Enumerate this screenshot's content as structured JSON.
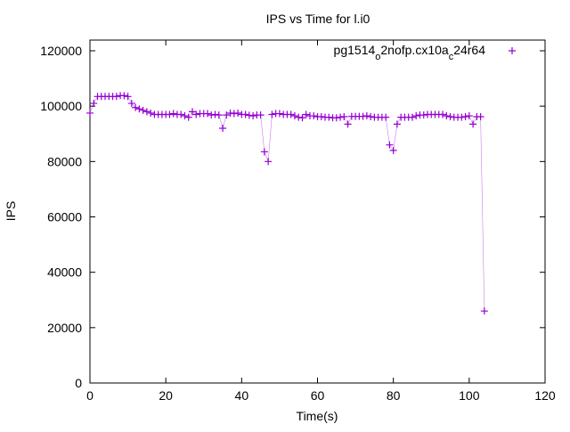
{
  "chart_data": {
    "type": "scatter",
    "title": "IPS vs Time for l.i0",
    "xlabel": "Time(s)",
    "ylabel": "IPS",
    "xlim": [
      0,
      120
    ],
    "ylim": [
      0,
      124000
    ],
    "xticks": [
      0,
      20,
      40,
      60,
      80,
      100,
      120
    ],
    "yticks": [
      0,
      20000,
      40000,
      60000,
      80000,
      100000,
      120000
    ],
    "legend_placement": "top-right",
    "series": [
      {
        "name": "pg1514_o2nofp.cx10a_c24r64",
        "name_parts": [
          "pg1514",
          "o",
          "2nofp.cx10a",
          "c",
          "24r64"
        ],
        "color": "#9400d3",
        "marker": "plus",
        "x": [
          0,
          1,
          2,
          3,
          4,
          5,
          6,
          7,
          8,
          9,
          10,
          11,
          12,
          13,
          14,
          15,
          16,
          17,
          18,
          19,
          20,
          21,
          22,
          23,
          24,
          25,
          26,
          27,
          28,
          29,
          30,
          31,
          32,
          33,
          34,
          35,
          36,
          37,
          38,
          39,
          40,
          41,
          42,
          43,
          44,
          45,
          46,
          47,
          48,
          49,
          50,
          51,
          52,
          53,
          54,
          55,
          56,
          57,
          58,
          59,
          60,
          61,
          62,
          63,
          64,
          65,
          66,
          67,
          68,
          69,
          70,
          71,
          72,
          73,
          74,
          75,
          76,
          77,
          78,
          79,
          80,
          81,
          82,
          83,
          84,
          85,
          86,
          87,
          88,
          89,
          90,
          91,
          92,
          93,
          94,
          95,
          96,
          97,
          98,
          99,
          100,
          101,
          102,
          103,
          104
        ],
        "y": [
          97500,
          101000,
          103500,
          103500,
          103500,
          103500,
          103500,
          103500,
          103800,
          103800,
          103500,
          101000,
          99500,
          99000,
          98500,
          98000,
          97500,
          97000,
          97000,
          97000,
          97000,
          97000,
          97300,
          97000,
          97000,
          96500,
          96000,
          98000,
          97000,
          97300,
          97300,
          97300,
          96800,
          97000,
          96800,
          92000,
          96800,
          97500,
          97300,
          97500,
          97000,
          97000,
          96700,
          96500,
          96800,
          96800,
          83500,
          80000,
          97000,
          97300,
          97300,
          97000,
          97000,
          97000,
          96500,
          96000,
          95800,
          97000,
          96500,
          96500,
          96200,
          96200,
          96000,
          96000,
          95800,
          95800,
          96000,
          96200,
          93500,
          96300,
          96300,
          96300,
          96300,
          96500,
          96200,
          96000,
          96000,
          96000,
          96000,
          86000,
          84000,
          93500,
          96000,
          96000,
          96000,
          96000,
          96500,
          96800,
          96800,
          97000,
          97000,
          97000,
          97000,
          97000,
          96500,
          96200,
          96000,
          96000,
          96000,
          96200,
          96500,
          93500,
          96200,
          96200,
          26000
        ]
      }
    ]
  }
}
